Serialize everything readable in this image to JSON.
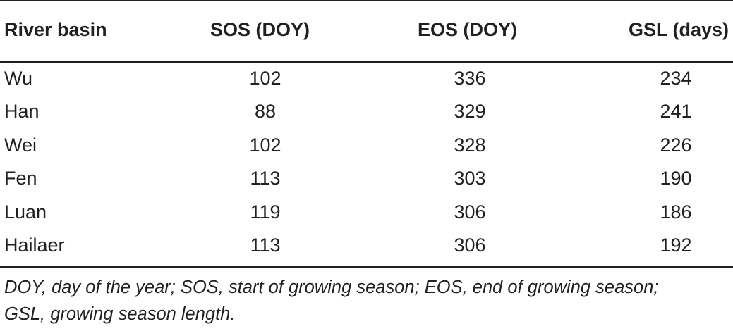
{
  "table": {
    "headers": [
      "River basin",
      "SOS (DOY)",
      "EOS (DOY)",
      "GSL (days)"
    ],
    "rows": [
      [
        "Wu",
        "102",
        "336",
        "234"
      ],
      [
        "Han",
        "88",
        "329",
        "241"
      ],
      [
        "Wei",
        "102",
        "328",
        "226"
      ],
      [
        "Fen",
        "113",
        "303",
        "190"
      ],
      [
        "Luan",
        "119",
        "306",
        "186"
      ],
      [
        "Hailaer",
        "113",
        "306",
        "192"
      ]
    ],
    "footnote_line1": "DOY, day of the year; SOS, start of growing season; EOS, end of growing season;",
    "footnote_line2": "GSL, growing season length."
  }
}
